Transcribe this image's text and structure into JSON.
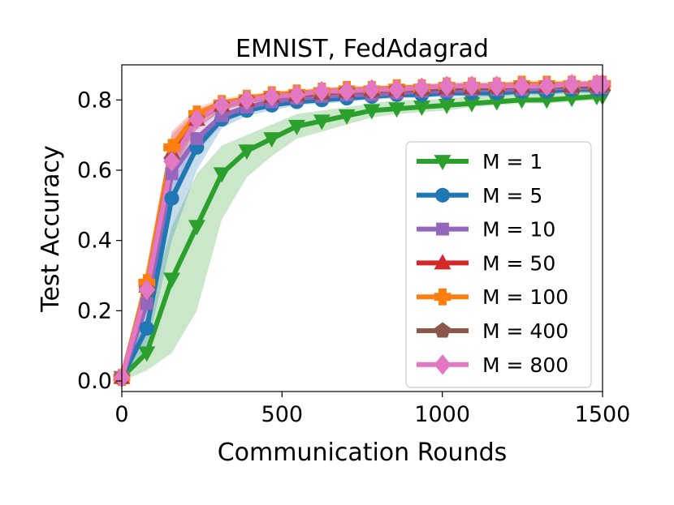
{
  "chart_data": {
    "type": "line",
    "title": "EMNIST, FedAdagrad",
    "xlabel": "Communication Rounds",
    "ylabel": "Test Accuracy",
    "xlim": [
      0,
      1500
    ],
    "ylim": [
      -0.03,
      0.9
    ],
    "xticks": [
      0,
      500,
      1000,
      1500
    ],
    "yticks": [
      0.0,
      0.2,
      0.4,
      0.6,
      0.8
    ],
    "xtick_labels": [
      "0",
      "500",
      "1000",
      "1500"
    ],
    "ytick_labels": [
      "0.0",
      "0.2",
      "0.4",
      "0.6",
      "0.8"
    ],
    "grid": false,
    "legend": "center-right",
    "x": [
      0,
      78,
      156,
      234,
      312,
      390,
      468,
      546,
      624,
      702,
      780,
      858,
      936,
      1014,
      1092,
      1170,
      1248,
      1326,
      1404,
      1482,
      1500
    ],
    "series": [
      {
        "name": "M = 1",
        "color": "#2ca02c",
        "marker": "triangle-down",
        "values": [
          0.01,
          0.08,
          0.29,
          0.44,
          0.59,
          0.655,
          0.69,
          0.725,
          0.74,
          0.755,
          0.77,
          0.775,
          0.78,
          0.785,
          0.79,
          0.795,
          0.8,
          0.8,
          0.805,
          0.81,
          0.81
        ],
        "band_low": [
          0.0,
          0.03,
          0.08,
          0.2,
          0.46,
          0.58,
          0.64,
          0.69,
          0.71,
          0.73,
          0.75,
          0.76,
          0.765,
          0.77,
          0.78,
          0.785,
          0.79,
          0.79,
          0.795,
          0.8,
          0.8
        ],
        "band_high": [
          0.02,
          0.18,
          0.44,
          0.59,
          0.67,
          0.7,
          0.73,
          0.76,
          0.77,
          0.78,
          0.79,
          0.8,
          0.8,
          0.805,
          0.81,
          0.815,
          0.82,
          0.82,
          0.82,
          0.825,
          0.825
        ]
      },
      {
        "name": "M = 5",
        "color": "#1f77b4",
        "marker": "circle",
        "values": [
          0.01,
          0.15,
          0.52,
          0.665,
          0.745,
          0.77,
          0.785,
          0.795,
          0.8,
          0.805,
          0.81,
          0.815,
          0.815,
          0.82,
          0.82,
          0.82,
          0.825,
          0.825,
          0.83,
          0.83,
          0.83
        ],
        "band_low": [
          0.0,
          0.09,
          0.4,
          0.6,
          0.72,
          0.755,
          0.77,
          0.785,
          0.79,
          0.795,
          0.8,
          0.805,
          0.805,
          0.81,
          0.81,
          0.81,
          0.815,
          0.815,
          0.82,
          0.82,
          0.82
        ],
        "band_high": [
          0.02,
          0.22,
          0.6,
          0.7,
          0.76,
          0.785,
          0.8,
          0.805,
          0.81,
          0.815,
          0.82,
          0.82,
          0.825,
          0.83,
          0.83,
          0.83,
          0.835,
          0.835,
          0.84,
          0.84,
          0.84
        ]
      },
      {
        "name": "M = 10",
        "color": "#9467bd",
        "marker": "square",
        "values": [
          0.01,
          0.22,
          0.59,
          0.69,
          0.755,
          0.78,
          0.795,
          0.805,
          0.81,
          0.815,
          0.815,
          0.82,
          0.825,
          0.825,
          0.83,
          0.83,
          0.83,
          0.835,
          0.835,
          0.835,
          0.835
        ],
        "band_low": [
          0.0,
          0.16,
          0.5,
          0.65,
          0.73,
          0.765,
          0.785,
          0.795,
          0.8,
          0.805,
          0.805,
          0.81,
          0.815,
          0.815,
          0.82,
          0.82,
          0.82,
          0.825,
          0.825,
          0.825,
          0.825
        ],
        "band_high": [
          0.02,
          0.28,
          0.66,
          0.72,
          0.775,
          0.795,
          0.805,
          0.815,
          0.82,
          0.825,
          0.825,
          0.83,
          0.835,
          0.835,
          0.84,
          0.84,
          0.84,
          0.845,
          0.845,
          0.845,
          0.845
        ]
      },
      {
        "name": "M = 50",
        "color": "#d62728",
        "marker": "triangle-up",
        "values": [
          0.01,
          0.27,
          0.65,
          0.745,
          0.785,
          0.8,
          0.81,
          0.815,
          0.82,
          0.825,
          0.83,
          0.83,
          0.835,
          0.835,
          0.835,
          0.84,
          0.84,
          0.84,
          0.84,
          0.845,
          0.845
        ],
        "band_low": [
          0.0,
          0.22,
          0.6,
          0.72,
          0.77,
          0.79,
          0.8,
          0.805,
          0.81,
          0.815,
          0.82,
          0.82,
          0.825,
          0.825,
          0.825,
          0.83,
          0.83,
          0.83,
          0.83,
          0.835,
          0.835
        ],
        "band_high": [
          0.02,
          0.32,
          0.7,
          0.77,
          0.8,
          0.81,
          0.82,
          0.825,
          0.83,
          0.835,
          0.84,
          0.84,
          0.845,
          0.845,
          0.845,
          0.85,
          0.85,
          0.85,
          0.85,
          0.855,
          0.855
        ]
      },
      {
        "name": "M = 100",
        "color": "#ff7f0e",
        "marker": "plus",
        "values": [
          0.01,
          0.28,
          0.665,
          0.76,
          0.79,
          0.805,
          0.815,
          0.82,
          0.825,
          0.83,
          0.83,
          0.835,
          0.835,
          0.84,
          0.84,
          0.84,
          0.845,
          0.845,
          0.845,
          0.845,
          0.845
        ],
        "band_low": [
          0.0,
          0.23,
          0.62,
          0.735,
          0.775,
          0.795,
          0.805,
          0.81,
          0.815,
          0.82,
          0.82,
          0.825,
          0.825,
          0.83,
          0.83,
          0.83,
          0.835,
          0.835,
          0.835,
          0.835,
          0.835
        ],
        "band_high": [
          0.02,
          0.33,
          0.71,
          0.78,
          0.805,
          0.815,
          0.825,
          0.83,
          0.835,
          0.84,
          0.84,
          0.845,
          0.845,
          0.85,
          0.85,
          0.85,
          0.855,
          0.855,
          0.855,
          0.855,
          0.855
        ]
      },
      {
        "name": "M = 400",
        "color": "#8c564b",
        "marker": "pentagon",
        "values": [
          0.01,
          0.26,
          0.63,
          0.745,
          0.785,
          0.8,
          0.81,
          0.815,
          0.82,
          0.825,
          0.825,
          0.83,
          0.83,
          0.835,
          0.835,
          0.835,
          0.84,
          0.84,
          0.84,
          0.84,
          0.84
        ],
        "band_low": [
          0.0,
          0.21,
          0.58,
          0.72,
          0.77,
          0.79,
          0.8,
          0.805,
          0.81,
          0.815,
          0.815,
          0.82,
          0.82,
          0.825,
          0.825,
          0.825,
          0.83,
          0.83,
          0.83,
          0.83,
          0.83
        ],
        "band_high": [
          0.02,
          0.31,
          0.68,
          0.77,
          0.8,
          0.81,
          0.82,
          0.825,
          0.83,
          0.835,
          0.835,
          0.84,
          0.84,
          0.845,
          0.845,
          0.845,
          0.85,
          0.85,
          0.85,
          0.85,
          0.85
        ]
      },
      {
        "name": "M = 800",
        "color": "#e377c2",
        "marker": "diamond",
        "values": [
          0.01,
          0.26,
          0.625,
          0.745,
          0.785,
          0.8,
          0.81,
          0.815,
          0.825,
          0.825,
          0.83,
          0.83,
          0.835,
          0.84,
          0.84,
          0.84,
          0.84,
          0.84,
          0.845,
          0.845,
          0.845
        ],
        "band_low": [
          0.0,
          0.2,
          0.57,
          0.715,
          0.77,
          0.79,
          0.8,
          0.805,
          0.815,
          0.815,
          0.82,
          0.82,
          0.825,
          0.83,
          0.83,
          0.83,
          0.83,
          0.83,
          0.835,
          0.835,
          0.835
        ],
        "band_high": [
          0.02,
          0.32,
          0.71,
          0.775,
          0.8,
          0.81,
          0.82,
          0.825,
          0.835,
          0.835,
          0.84,
          0.84,
          0.845,
          0.85,
          0.85,
          0.85,
          0.85,
          0.85,
          0.855,
          0.855,
          0.855
        ]
      }
    ]
  }
}
